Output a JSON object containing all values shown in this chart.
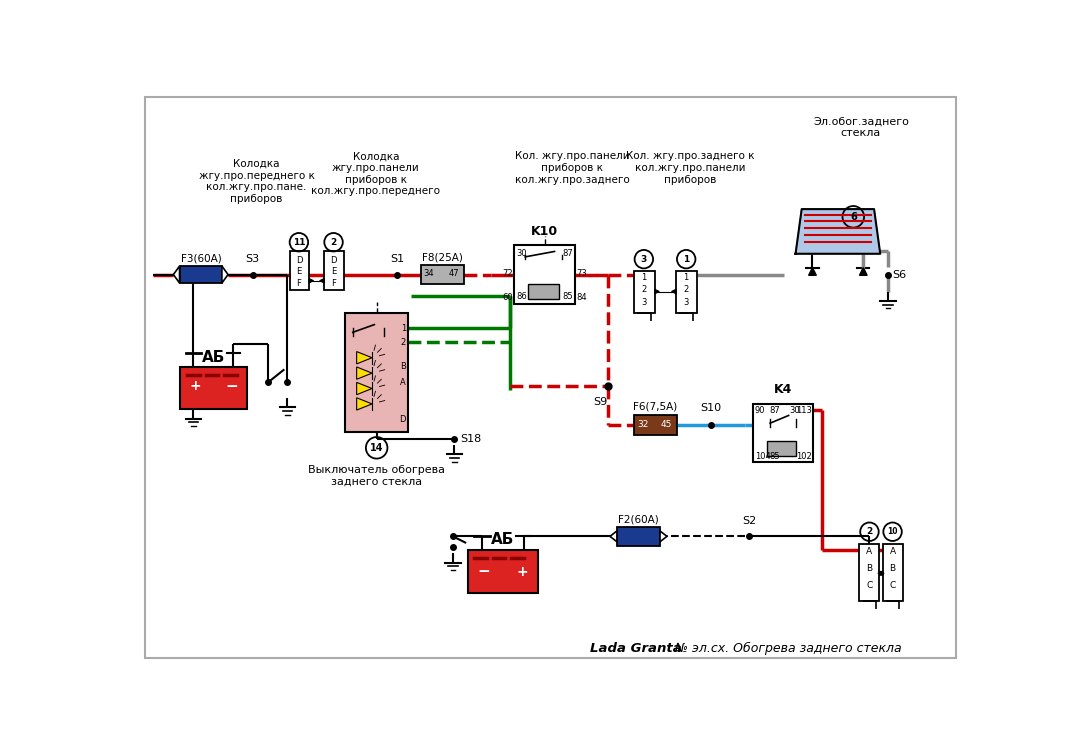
{
  "bg": "#ffffff",
  "RED": "#cc0000",
  "GREEN": "#007700",
  "BLUE": "#2299dd",
  "GRAY": "#888888",
  "BLACK": "#000000",
  "BROWN": "#7a3a1a",
  "NAVY": "#1a3a8f",
  "PINK_BG": "#e8b4b4",
  "LIGHT_BLUE": "#b0c8e8",
  "BATTERY_RED": "#dd2222",
  "label_kolodka1": "Колодка\nжгу.про.переднего к\nкол.жгу.про.пане.\nприборов",
  "label_kolodka2": "Колодка\nжгу.про.панели\nприборов к\nкол.жгу.про.переднего",
  "label_kol3": "Кол. жгу.про.панели\nприборов к\nкол.жгу.про.заднего",
  "label_kol1": "Кол. жгу.про.заднего к\nкол.жгу.про.панели\nприборов",
  "label_heater": "Эл.обог.заднего\nстекла",
  "label_AB": "АБ",
  "label_switch": "Выключатель обогрева\nзаднего стекла",
  "title_bold": "Lada Granta",
  "title_rest": " № эл.сх. Обогрева заднего стекла"
}
